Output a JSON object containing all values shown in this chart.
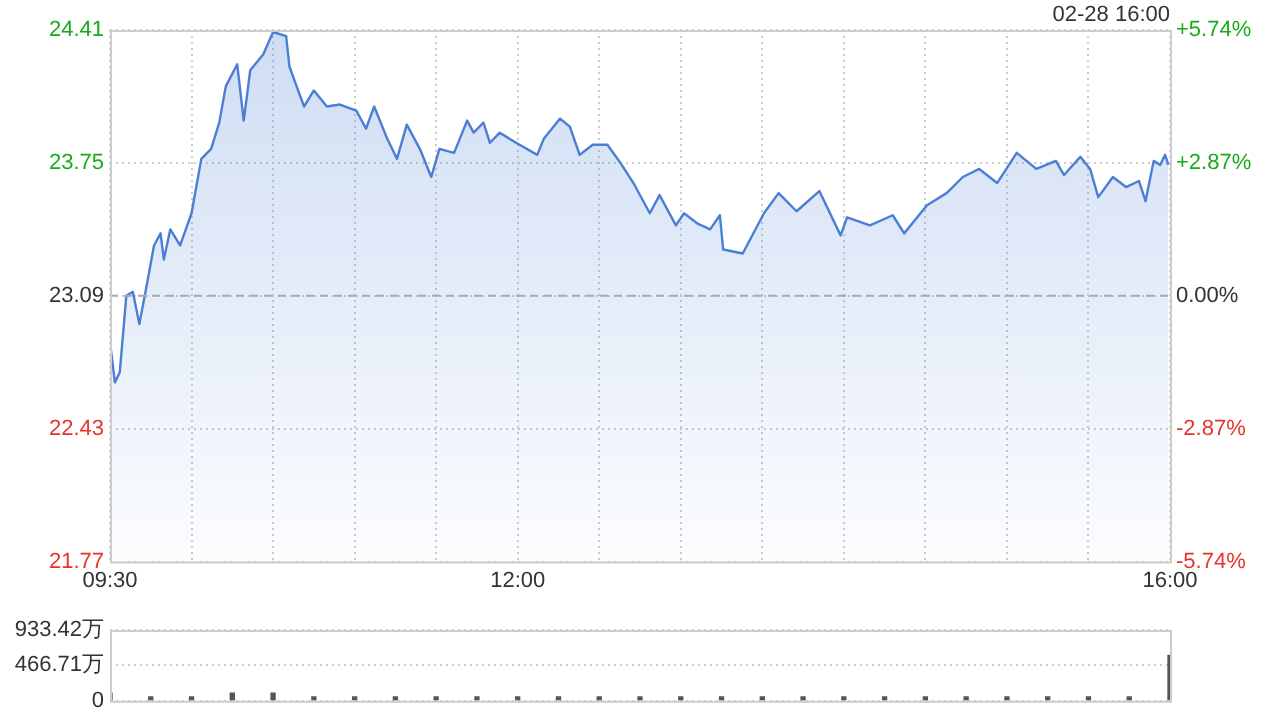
{
  "chart_data": [
    {
      "type": "area",
      "annotations": [
        "02-28 16:00"
      ],
      "x": [
        9.5,
        9.53,
        9.56,
        9.6,
        9.64,
        9.68,
        9.72,
        9.77,
        9.81,
        9.83,
        9.87,
        9.93,
        10.0,
        10.06,
        10.12,
        10.17,
        10.21,
        10.28,
        10.32,
        10.36,
        10.44,
        10.5,
        10.58,
        10.6,
        10.64,
        10.69,
        10.75,
        10.83,
        10.91,
        11.01,
        11.07,
        11.12,
        11.2,
        11.26,
        11.32,
        11.4,
        11.47,
        11.52,
        11.61,
        11.69,
        11.73,
        11.79,
        11.83,
        11.89,
        11.99,
        12.12,
        12.16,
        12.26,
        12.32,
        12.38,
        12.46,
        12.55,
        12.63,
        12.71,
        12.81,
        12.87,
        12.97,
        13.02,
        13.1,
        13.18,
        13.24,
        13.26,
        13.38,
        13.51,
        13.6,
        13.71,
        13.85,
        13.98,
        14.02,
        14.16,
        14.3,
        14.37,
        14.51,
        14.63,
        14.73,
        14.83,
        14.94,
        15.06,
        15.18,
        15.3,
        15.35,
        15.45,
        15.51,
        15.56,
        15.65,
        15.73,
        15.81,
        15.85,
        15.9,
        15.94,
        15.97,
        15.99
      ],
      "series": [
        {
          "color": "#4a7fd4",
          "values": [
            22.86,
            22.66,
            22.71,
            23.09,
            23.11,
            22.95,
            23.12,
            23.34,
            23.4,
            23.27,
            23.42,
            23.34,
            23.5,
            23.77,
            23.82,
            23.95,
            24.13,
            24.24,
            23.96,
            24.21,
            24.29,
            24.4,
            24.38,
            24.23,
            24.14,
            24.03,
            24.11,
            24.03,
            24.04,
            24.01,
            23.92,
            24.03,
            23.87,
            23.77,
            23.94,
            23.82,
            23.68,
            23.82,
            23.8,
            23.96,
            23.9,
            23.95,
            23.85,
            23.9,
            23.85,
            23.79,
            23.87,
            23.97,
            23.93,
            23.79,
            23.84,
            23.84,
            23.75,
            23.65,
            23.5,
            23.59,
            23.44,
            23.5,
            23.45,
            23.42,
            23.49,
            23.32,
            23.3,
            23.5,
            23.6,
            23.51,
            23.61,
            23.39,
            23.48,
            23.44,
            23.49,
            23.4,
            23.54,
            23.6,
            23.68,
            23.72,
            23.65,
            23.8,
            23.72,
            23.76,
            23.69,
            23.78,
            23.72,
            23.58,
            23.68,
            23.63,
            23.66,
            23.56,
            23.76,
            23.74,
            23.79,
            23.74
          ]
        }
      ],
      "xlim": [
        9.5,
        16
      ],
      "xticks": [
        {
          "value": 9.5,
          "label": "09:30"
        },
        {
          "value": 10,
          "label": null
        },
        {
          "value": 10.5,
          "label": null
        },
        {
          "value": 11,
          "label": null
        },
        {
          "value": 11.5,
          "label": null
        },
        {
          "value": 12,
          "label": "12:00"
        },
        {
          "value": 12.5,
          "label": null
        },
        {
          "value": 13,
          "label": null
        },
        {
          "value": 13.5,
          "label": null
        },
        {
          "value": 14,
          "label": null
        },
        {
          "value": 14.5,
          "label": null
        },
        {
          "value": 15,
          "label": null
        },
        {
          "value": 15.5,
          "label": null
        },
        {
          "value": 16,
          "label": "16:00"
        }
      ],
      "ylim": [
        21.77,
        24.41
      ],
      "yticks": [
        21.77,
        22.43,
        23.09,
        23.75,
        24.41
      ],
      "y2lim": [
        -5.74,
        5.74
      ],
      "y2ticks": [
        {
          "value": -5.74,
          "label": "-5.74%"
        },
        {
          "value": -2.87,
          "label": "-2.87%"
        },
        {
          "value": 0,
          "label": "0.00%"
        },
        {
          "value": 2.87,
          "label": "+2.87%"
        },
        {
          "value": 5.74,
          "label": "+5.74%"
        }
      ],
      "ref_lines": [
        {
          "axis": "y",
          "value": 23.09,
          "color": "#aaaaaa",
          "line_style": "dashed"
        }
      ],
      "grid": true
    },
    {
      "type": "bar",
      "color": "#555555",
      "x": [
        9.5,
        9.75,
        10,
        10.25,
        10.5,
        10.75,
        11,
        11.25,
        11.5,
        11.75,
        12,
        12.25,
        12.5,
        12.75,
        13,
        13.25,
        13.5,
        13.75,
        14,
        14.25,
        14.5,
        14.75,
        15,
        15.25,
        15.5,
        15.75,
        16
      ],
      "values": [
        100,
        50,
        50,
        100,
        100,
        50,
        50,
        50,
        50,
        50,
        50,
        50,
        50,
        50,
        50,
        50,
        50,
        50,
        50,
        50,
        50,
        50,
        50,
        50,
        50,
        50,
        600
      ],
      "xlim": [
        9.5,
        16
      ],
      "ylim": [
        0,
        933.42
      ],
      "yticks": [
        0,
        {
          "value": 466.71,
          "label": "466.71万"
        },
        {
          "value": 933.42,
          "label": "933.42万"
        }
      ],
      "tick_labels": "y",
      "grid": "y"
    }
  ]
}
